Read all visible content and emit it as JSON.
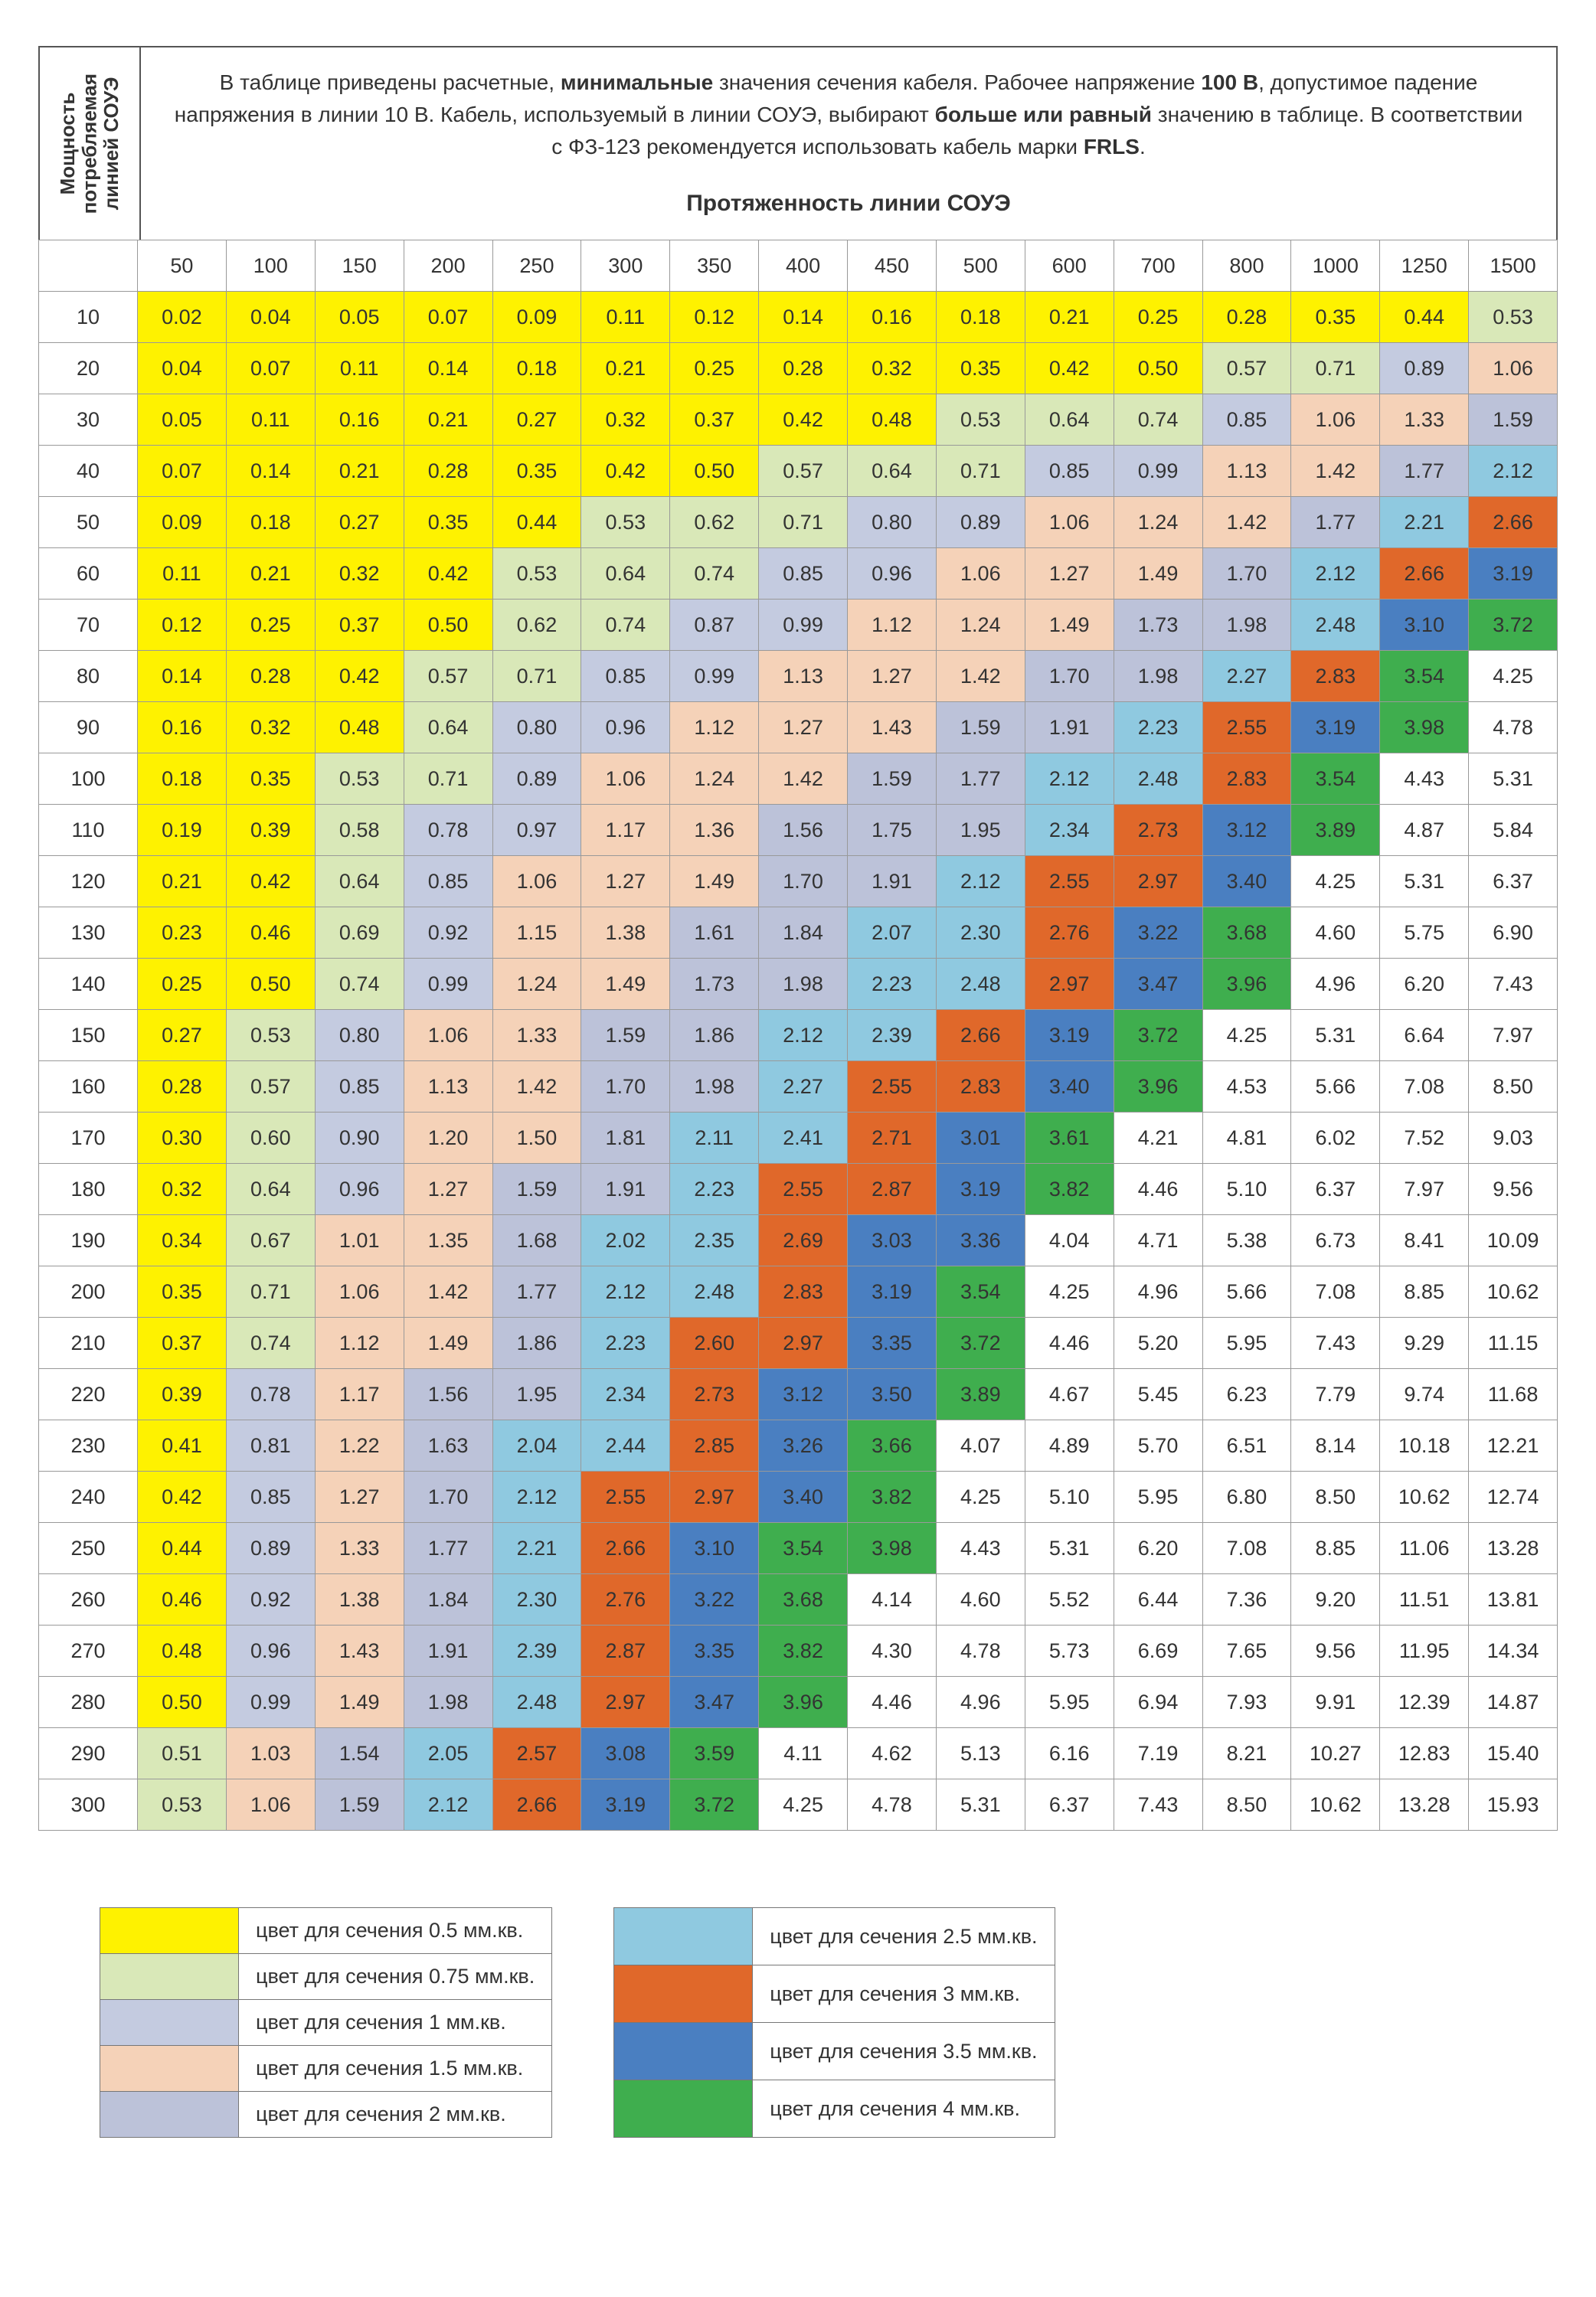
{
  "rotated_label": "Мощность\nпотребляемая\nлинией СОУЭ",
  "description_html": "В таблице приведены расчетные, <b>минимальные</b> значения сечения кабеля. Рабочее напряжение <b>100 В</b>, допустимое падение напряжения в линии 10 В. Кабель, используемый в линии СОУЭ, выбирают <b>больше или равный</b> значению в таблице. В соответствии с ФЗ-123 рекомендуется использовать кабель марки <b>FRLS</b>.",
  "subtitle": "Протяженность линии СОУЭ",
  "column_headers": [
    "50",
    "100",
    "150",
    "200",
    "250",
    "300",
    "350",
    "400",
    "450",
    "500",
    "600",
    "700",
    "800",
    "1000",
    "1250",
    "1500"
  ],
  "row_headers": [
    "10",
    "20",
    "30",
    "40",
    "50",
    "60",
    "70",
    "80",
    "90",
    "100",
    "110",
    "120",
    "130",
    "140",
    "150",
    "160",
    "170",
    "180",
    "190",
    "200",
    "210",
    "220",
    "230",
    "240",
    "250",
    "260",
    "270",
    "280",
    "290",
    "300"
  ],
  "data": [
    [
      "0.02",
      "0.04",
      "0.05",
      "0.07",
      "0.09",
      "0.11",
      "0.12",
      "0.14",
      "0.16",
      "0.18",
      "0.21",
      "0.25",
      "0.28",
      "0.35",
      "0.44",
      "0.53"
    ],
    [
      "0.04",
      "0.07",
      "0.11",
      "0.14",
      "0.18",
      "0.21",
      "0.25",
      "0.28",
      "0.32",
      "0.35",
      "0.42",
      "0.50",
      "0.57",
      "0.71",
      "0.89",
      "1.06"
    ],
    [
      "0.05",
      "0.11",
      "0.16",
      "0.21",
      "0.27",
      "0.32",
      "0.37",
      "0.42",
      "0.48",
      "0.53",
      "0.64",
      "0.74",
      "0.85",
      "1.06",
      "1.33",
      "1.59"
    ],
    [
      "0.07",
      "0.14",
      "0.21",
      "0.28",
      "0.35",
      "0.42",
      "0.50",
      "0.57",
      "0.64",
      "0.71",
      "0.85",
      "0.99",
      "1.13",
      "1.42",
      "1.77",
      "2.12"
    ],
    [
      "0.09",
      "0.18",
      "0.27",
      "0.35",
      "0.44",
      "0.53",
      "0.62",
      "0.71",
      "0.80",
      "0.89",
      "1.06",
      "1.24",
      "1.42",
      "1.77",
      "2.21",
      "2.66"
    ],
    [
      "0.11",
      "0.21",
      "0.32",
      "0.42",
      "0.53",
      "0.64",
      "0.74",
      "0.85",
      "0.96",
      "1.06",
      "1.27",
      "1.49",
      "1.70",
      "2.12",
      "2.66",
      "3.19"
    ],
    [
      "0.12",
      "0.25",
      "0.37",
      "0.50",
      "0.62",
      "0.74",
      "0.87",
      "0.99",
      "1.12",
      "1.24",
      "1.49",
      "1.73",
      "1.98",
      "2.48",
      "3.10",
      "3.72"
    ],
    [
      "0.14",
      "0.28",
      "0.42",
      "0.57",
      "0.71",
      "0.85",
      "0.99",
      "1.13",
      "1.27",
      "1.42",
      "1.70",
      "1.98",
      "2.27",
      "2.83",
      "3.54",
      "4.25"
    ],
    [
      "0.16",
      "0.32",
      "0.48",
      "0.64",
      "0.80",
      "0.96",
      "1.12",
      "1.27",
      "1.43",
      "1.59",
      "1.91",
      "2.23",
      "2.55",
      "3.19",
      "3.98",
      "4.78"
    ],
    [
      "0.18",
      "0.35",
      "0.53",
      "0.71",
      "0.89",
      "1.06",
      "1.24",
      "1.42",
      "1.59",
      "1.77",
      "2.12",
      "2.48",
      "2.83",
      "3.54",
      "4.43",
      "5.31"
    ],
    [
      "0.19",
      "0.39",
      "0.58",
      "0.78",
      "0.97",
      "1.17",
      "1.36",
      "1.56",
      "1.75",
      "1.95",
      "2.34",
      "2.73",
      "3.12",
      "3.89",
      "4.87",
      "5.84"
    ],
    [
      "0.21",
      "0.42",
      "0.64",
      "0.85",
      "1.06",
      "1.27",
      "1.49",
      "1.70",
      "1.91",
      "2.12",
      "2.55",
      "2.97",
      "3.40",
      "4.25",
      "5.31",
      "6.37"
    ],
    [
      "0.23",
      "0.46",
      "0.69",
      "0.92",
      "1.15",
      "1.38",
      "1.61",
      "1.84",
      "2.07",
      "2.30",
      "2.76",
      "3.22",
      "3.68",
      "4.60",
      "5.75",
      "6.90"
    ],
    [
      "0.25",
      "0.50",
      "0.74",
      "0.99",
      "1.24",
      "1.49",
      "1.73",
      "1.98",
      "2.23",
      "2.48",
      "2.97",
      "3.47",
      "3.96",
      "4.96",
      "6.20",
      "7.43"
    ],
    [
      "0.27",
      "0.53",
      "0.80",
      "1.06",
      "1.33",
      "1.59",
      "1.86",
      "2.12",
      "2.39",
      "2.66",
      "3.19",
      "3.72",
      "4.25",
      "5.31",
      "6.64",
      "7.97"
    ],
    [
      "0.28",
      "0.57",
      "0.85",
      "1.13",
      "1.42",
      "1.70",
      "1.98",
      "2.27",
      "2.55",
      "2.83",
      "3.40",
      "3.96",
      "4.53",
      "5.66",
      "7.08",
      "8.50"
    ],
    [
      "0.30",
      "0.60",
      "0.90",
      "1.20",
      "1.50",
      "1.81",
      "2.11",
      "2.41",
      "2.71",
      "3.01",
      "3.61",
      "4.21",
      "4.81",
      "6.02",
      "7.52",
      "9.03"
    ],
    [
      "0.32",
      "0.64",
      "0.96",
      "1.27",
      "1.59",
      "1.91",
      "2.23",
      "2.55",
      "2.87",
      "3.19",
      "3.82",
      "4.46",
      "5.10",
      "6.37",
      "7.97",
      "9.56"
    ],
    [
      "0.34",
      "0.67",
      "1.01",
      "1.35",
      "1.68",
      "2.02",
      "2.35",
      "2.69",
      "3.03",
      "3.36",
      "4.04",
      "4.71",
      "5.38",
      "6.73",
      "8.41",
      "10.09"
    ],
    [
      "0.35",
      "0.71",
      "1.06",
      "1.42",
      "1.77",
      "2.12",
      "2.48",
      "2.83",
      "3.19",
      "3.54",
      "4.25",
      "4.96",
      "5.66",
      "7.08",
      "8.85",
      "10.62"
    ],
    [
      "0.37",
      "0.74",
      "1.12",
      "1.49",
      "1.86",
      "2.23",
      "2.60",
      "2.97",
      "3.35",
      "3.72",
      "4.46",
      "5.20",
      "5.95",
      "7.43",
      "9.29",
      "11.15"
    ],
    [
      "0.39",
      "0.78",
      "1.17",
      "1.56",
      "1.95",
      "2.34",
      "2.73",
      "3.12",
      "3.50",
      "3.89",
      "4.67",
      "5.45",
      "6.23",
      "7.79",
      "9.74",
      "11.68"
    ],
    [
      "0.41",
      "0.81",
      "1.22",
      "1.63",
      "2.04",
      "2.44",
      "2.85",
      "3.26",
      "3.66",
      "4.07",
      "4.89",
      "5.70",
      "6.51",
      "8.14",
      "10.18",
      "12.21"
    ],
    [
      "0.42",
      "0.85",
      "1.27",
      "1.70",
      "2.12",
      "2.55",
      "2.97",
      "3.40",
      "3.82",
      "4.25",
      "5.10",
      "5.95",
      "6.80",
      "8.50",
      "10.62",
      "12.74"
    ],
    [
      "0.44",
      "0.89",
      "1.33",
      "1.77",
      "2.21",
      "2.66",
      "3.10",
      "3.54",
      "3.98",
      "4.43",
      "5.31",
      "6.20",
      "7.08",
      "8.85",
      "11.06",
      "13.28"
    ],
    [
      "0.46",
      "0.92",
      "1.38",
      "1.84",
      "2.30",
      "2.76",
      "3.22",
      "3.68",
      "4.14",
      "4.60",
      "5.52",
      "6.44",
      "7.36",
      "9.20",
      "11.51",
      "13.81"
    ],
    [
      "0.48",
      "0.96",
      "1.43",
      "1.91",
      "2.39",
      "2.87",
      "3.35",
      "3.82",
      "4.30",
      "4.78",
      "5.73",
      "6.69",
      "7.65",
      "9.56",
      "11.95",
      "14.34"
    ],
    [
      "0.50",
      "0.99",
      "1.49",
      "1.98",
      "2.48",
      "2.97",
      "3.47",
      "3.96",
      "4.46",
      "4.96",
      "5.95",
      "6.94",
      "7.93",
      "9.91",
      "12.39",
      "14.87"
    ],
    [
      "0.51",
      "1.03",
      "1.54",
      "2.05",
      "2.57",
      "3.08",
      "3.59",
      "4.11",
      "4.62",
      "5.13",
      "6.16",
      "7.19",
      "8.21",
      "10.27",
      "12.83",
      "15.40"
    ],
    [
      "0.53",
      "1.06",
      "1.59",
      "2.12",
      "2.66",
      "3.19",
      "3.72",
      "4.25",
      "4.78",
      "5.31",
      "6.37",
      "7.43",
      "8.50",
      "10.62",
      "13.28",
      "15.93"
    ]
  ],
  "bands": [
    {
      "max": 0.5,
      "color": "#fef200"
    },
    {
      "max": 0.75,
      "color": "#d9e8b8"
    },
    {
      "max": 1.0,
      "color": "#c4cbe0"
    },
    {
      "max": 1.5,
      "color": "#f5d2b8"
    },
    {
      "max": 2.0,
      "color": "#bcc2d9"
    },
    {
      "max": 2.5,
      "color": "#8fc9e0"
    },
    {
      "max": 3.0,
      "color": "#e0682a"
    },
    {
      "max": 3.5,
      "color": "#4a7fc1"
    },
    {
      "max": 4.0,
      "color": "#3fae4e"
    }
  ],
  "default_color": "#ffffff",
  "legend_left": [
    {
      "color": "#fef200",
      "label": "цвет для сечения 0.5 мм.кв."
    },
    {
      "color": "#d9e8b8",
      "label": "цвет для сечения 0.75 мм.кв."
    },
    {
      "color": "#c4cbe0",
      "label": "цвет для сечения 1 мм.кв."
    },
    {
      "color": "#f5d2b8",
      "label": "цвет для сечения 1.5 мм.кв."
    },
    {
      "color": "#bcc2d9",
      "label": "цвет для сечения 2 мм.кв."
    }
  ],
  "legend_right": [
    {
      "color": "#8fc9e0",
      "label": "цвет для сечения 2.5 мм.кв."
    },
    {
      "color": "#e0682a",
      "label": "цвет для сечения 3 мм.кв."
    },
    {
      "color": "#4a7fc1",
      "label": "цвет для сечения 3.5 мм.кв."
    },
    {
      "color": "#3fae4e",
      "label": "цвет для сечения 4 мм.кв."
    }
  ]
}
